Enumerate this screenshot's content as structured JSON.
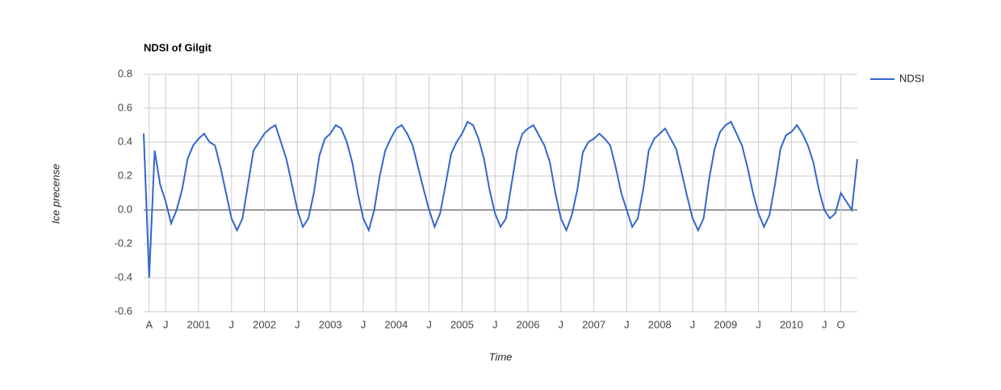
{
  "chart_data": {
    "type": "line",
    "title": "NDSI of Gilgit",
    "x_label": "Time",
    "y_label": "Ice precense",
    "legend_position": "right",
    "grid": true,
    "xlim": [
      "2000-03",
      "2011-01"
    ],
    "xticks": [
      {
        "value": "2000-04",
        "label": "A"
      },
      {
        "value": "2000-07",
        "label": "J"
      },
      {
        "value": "2001-01",
        "label": "2001"
      },
      {
        "value": "2001-07",
        "label": "J"
      },
      {
        "value": "2002-01",
        "label": "2002"
      },
      {
        "value": "2002-07",
        "label": "J"
      },
      {
        "value": "2003-01",
        "label": "2003"
      },
      {
        "value": "2003-07",
        "label": "J"
      },
      {
        "value": "2004-01",
        "label": "2004"
      },
      {
        "value": "2004-07",
        "label": "J"
      },
      {
        "value": "2005-01",
        "label": "2005"
      },
      {
        "value": "2005-07",
        "label": "J"
      },
      {
        "value": "2006-01",
        "label": "2006"
      },
      {
        "value": "2006-07",
        "label": "J"
      },
      {
        "value": "2007-01",
        "label": "2007"
      },
      {
        "value": "2007-07",
        "label": "J"
      },
      {
        "value": "2008-01",
        "label": "2008"
      },
      {
        "value": "2008-07",
        "label": "J"
      },
      {
        "value": "2009-01",
        "label": "2009"
      },
      {
        "value": "2009-07",
        "label": "J"
      },
      {
        "value": "2010-01",
        "label": "2010"
      },
      {
        "value": "2010-07",
        "label": "J"
      },
      {
        "value": "2010-10",
        "label": "O"
      }
    ],
    "ylim": [
      -0.6,
      0.8
    ],
    "yticks": [
      -0.6,
      -0.4,
      -0.2,
      {
        "value": 0,
        "label": "0.0"
      },
      0.2,
      0.4,
      0.6,
      0.8
    ],
    "x": [
      "2000-03",
      "2000-04",
      "2000-05",
      "2000-06",
      "2000-07",
      "2000-08",
      "2000-09",
      "2000-10",
      "2000-11",
      "2000-12",
      "2001-01",
      "2001-02",
      "2001-03",
      "2001-04",
      "2001-05",
      "2001-06",
      "2001-07",
      "2001-08",
      "2001-09",
      "2001-10",
      "2001-11",
      "2001-12",
      "2002-01",
      "2002-02",
      "2002-03",
      "2002-04",
      "2002-05",
      "2002-06",
      "2002-07",
      "2002-08",
      "2002-09",
      "2002-10",
      "2002-11",
      "2002-12",
      "2003-01",
      "2003-02",
      "2003-03",
      "2003-04",
      "2003-05",
      "2003-06",
      "2003-07",
      "2003-08",
      "2003-09",
      "2003-10",
      "2003-11",
      "2003-12",
      "2004-01",
      "2004-02",
      "2004-03",
      "2004-04",
      "2004-05",
      "2004-06",
      "2004-07",
      "2004-08",
      "2004-09",
      "2004-10",
      "2004-11",
      "2004-12",
      "2005-01",
      "2005-02",
      "2005-03",
      "2005-04",
      "2005-05",
      "2005-06",
      "2005-07",
      "2005-08",
      "2005-09",
      "2005-10",
      "2005-11",
      "2005-12",
      "2006-01",
      "2006-02",
      "2006-03",
      "2006-04",
      "2006-05",
      "2006-06",
      "2006-07",
      "2006-08",
      "2006-09",
      "2006-10",
      "2006-11",
      "2006-12",
      "2007-01",
      "2007-02",
      "2007-03",
      "2007-04",
      "2007-05",
      "2007-06",
      "2007-07",
      "2007-08",
      "2007-09",
      "2007-10",
      "2007-11",
      "2007-12",
      "2008-01",
      "2008-02",
      "2008-03",
      "2008-04",
      "2008-05",
      "2008-06",
      "2008-07",
      "2008-08",
      "2008-09",
      "2008-10",
      "2008-11",
      "2008-12",
      "2009-01",
      "2009-02",
      "2009-03",
      "2009-04",
      "2009-05",
      "2009-06",
      "2009-07",
      "2009-08",
      "2009-09",
      "2009-10",
      "2009-11",
      "2009-12",
      "2010-01",
      "2010-02",
      "2010-03",
      "2010-04",
      "2010-05",
      "2010-06",
      "2010-07",
      "2010-08",
      "2010-09",
      "2010-10",
      "2010-11",
      "2010-12",
      "2011-01"
    ],
    "series": [
      {
        "name": "NDSI",
        "color": "#3366cc",
        "values": [
          0.45,
          -0.4,
          0.35,
          0.15,
          0.05,
          -0.08,
          0.0,
          0.12,
          0.3,
          0.38,
          0.42,
          0.45,
          0.4,
          0.38,
          0.25,
          0.1,
          -0.05,
          -0.12,
          -0.05,
          0.15,
          0.35,
          0.4,
          0.45,
          0.48,
          0.5,
          0.4,
          0.3,
          0.15,
          0.0,
          -0.1,
          -0.05,
          0.1,
          0.32,
          0.42,
          0.45,
          0.5,
          0.48,
          0.4,
          0.28,
          0.1,
          -0.05,
          -0.12,
          0.0,
          0.2,
          0.35,
          0.42,
          0.48,
          0.5,
          0.45,
          0.38,
          0.25,
          0.12,
          0.0,
          -0.1,
          -0.02,
          0.15,
          0.33,
          0.4,
          0.45,
          0.52,
          0.5,
          0.42,
          0.3,
          0.12,
          -0.02,
          -0.1,
          -0.05,
          0.15,
          0.35,
          0.45,
          0.48,
          0.5,
          0.44,
          0.38,
          0.28,
          0.1,
          -0.05,
          -0.12,
          -0.03,
          0.12,
          0.34,
          0.4,
          0.42,
          0.45,
          0.42,
          0.38,
          0.25,
          0.1,
          0.0,
          -0.1,
          -0.05,
          0.12,
          0.35,
          0.42,
          0.45,
          0.48,
          0.42,
          0.36,
          0.22,
          0.08,
          -0.05,
          -0.12,
          -0.05,
          0.18,
          0.36,
          0.46,
          0.5,
          0.52,
          0.45,
          0.38,
          0.25,
          0.1,
          -0.02,
          -0.1,
          -0.03,
          0.15,
          0.36,
          0.44,
          0.46,
          0.5,
          0.45,
          0.38,
          0.28,
          0.12,
          0.0,
          -0.05,
          -0.02,
          0.1,
          0.05,
          0.0,
          0.3
        ]
      }
    ]
  }
}
